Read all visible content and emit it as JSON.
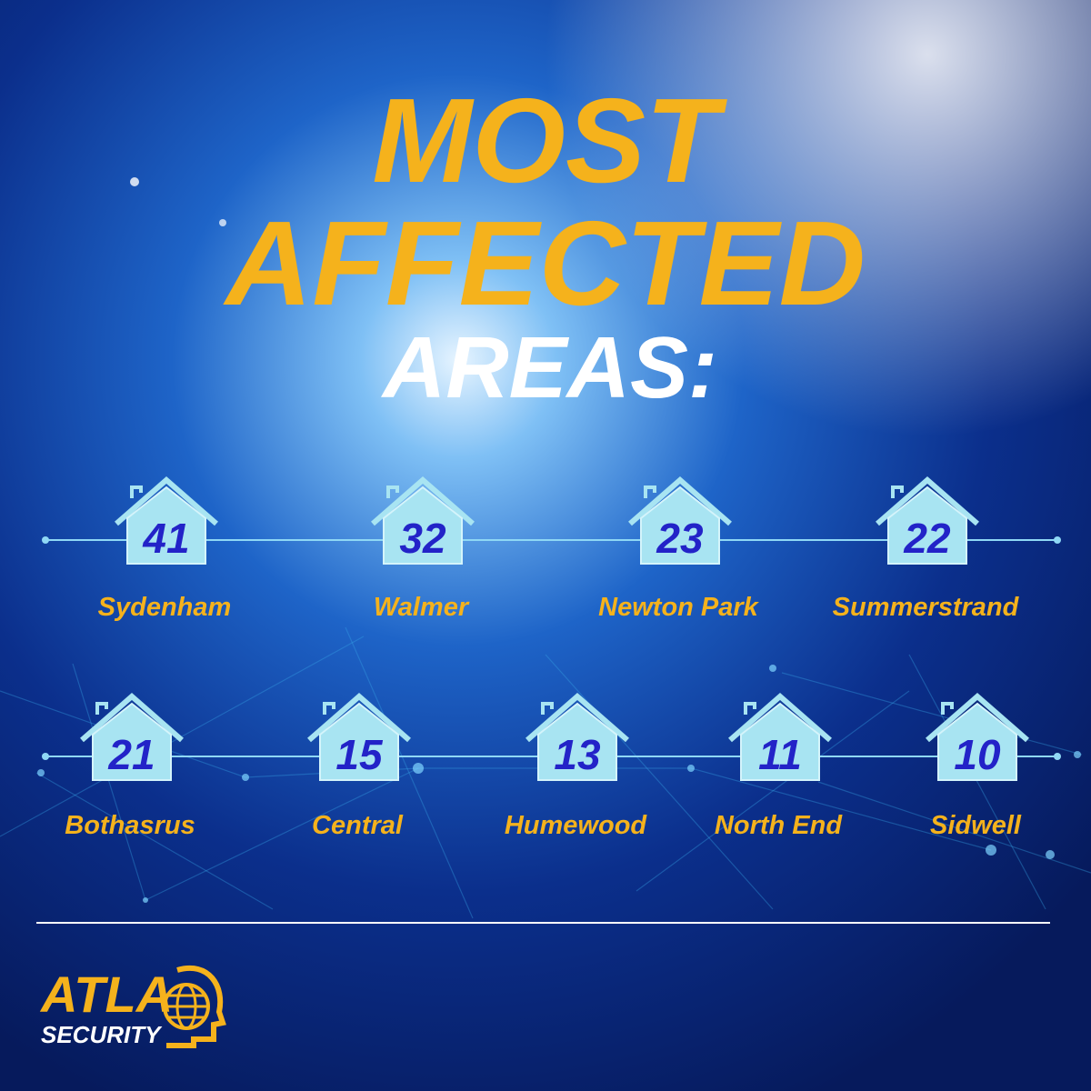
{
  "title": {
    "line1": "MOST",
    "line2": "AFFECTED",
    "line3": "AREAS:"
  },
  "rows": [
    [
      {
        "count": 41,
        "name": "Sydenham"
      },
      {
        "count": 32,
        "name": "Walmer"
      },
      {
        "count": 23,
        "name": "Newton Park"
      },
      {
        "count": 22,
        "name": "Summerstrand"
      }
    ],
    [
      {
        "count": 21,
        "name": "Bothasrus"
      },
      {
        "count": 15,
        "name": "Central"
      },
      {
        "count": 13,
        "name": "Humewood"
      },
      {
        "count": 11,
        "name": "North End"
      },
      {
        "count": 10,
        "name": "Sidwell"
      }
    ]
  ],
  "logo": {
    "name": "ATLA",
    "tagline": "SECURITY"
  }
}
